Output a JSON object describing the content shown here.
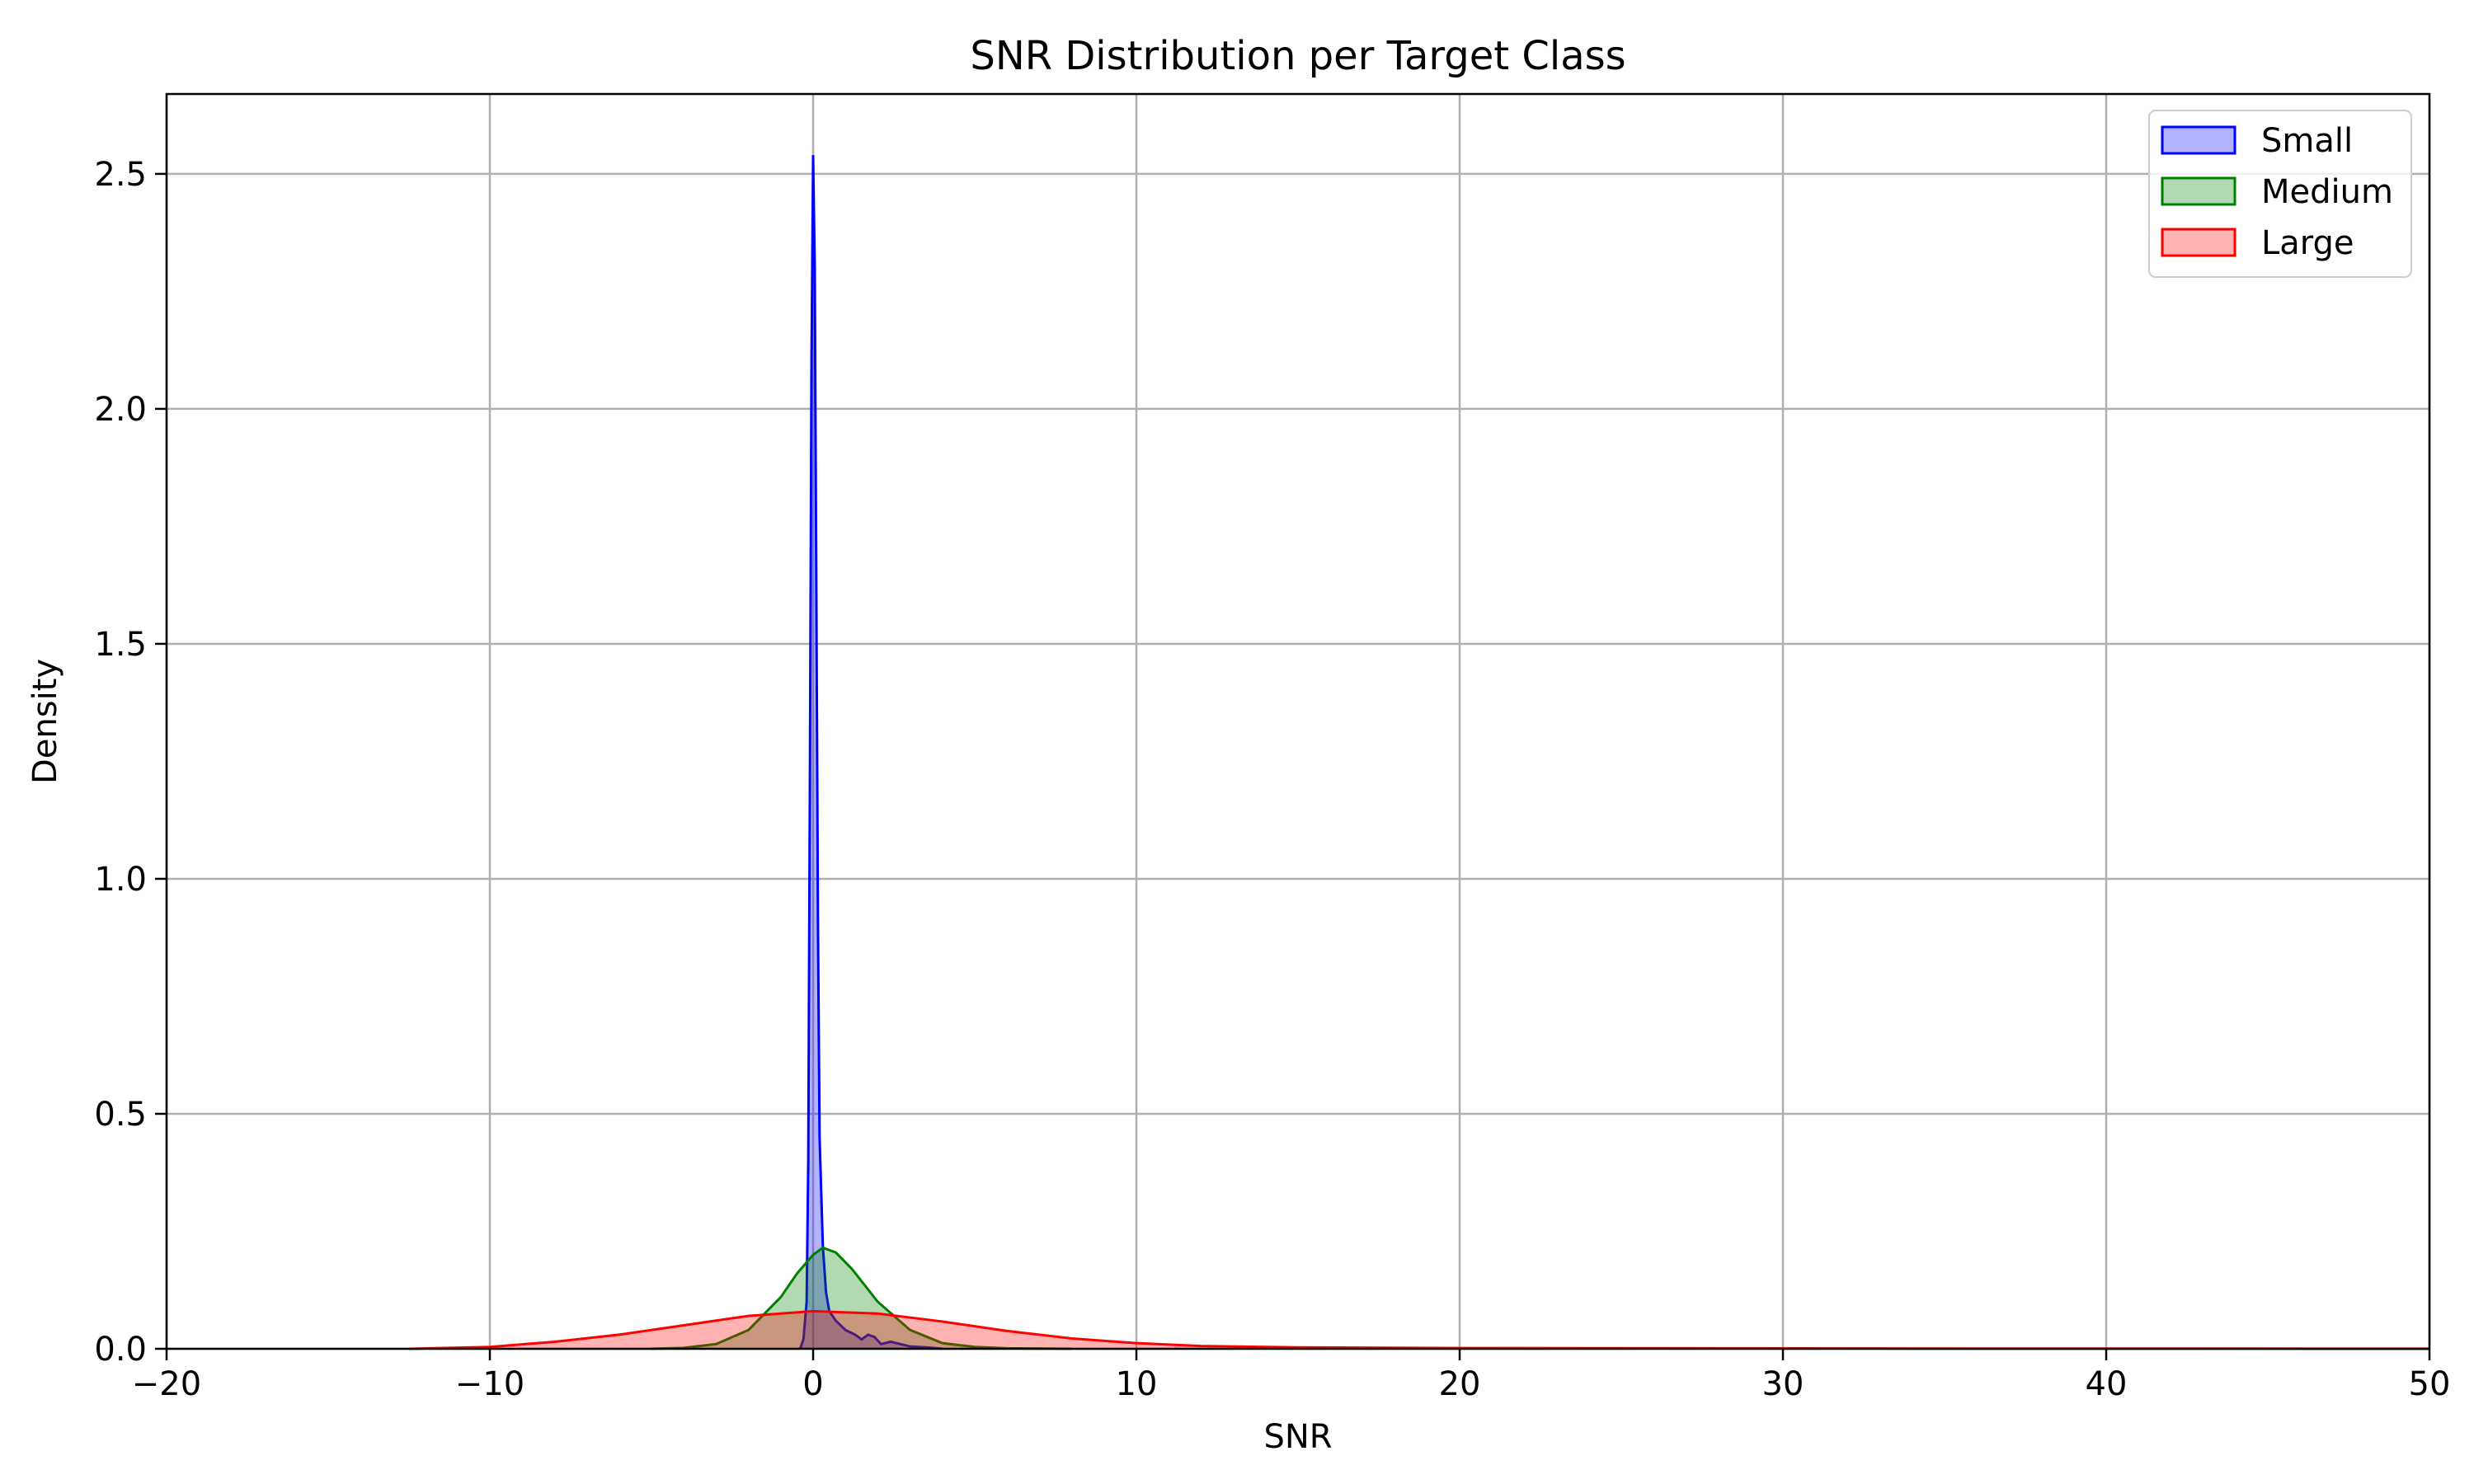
{
  "chart_data": {
    "type": "area",
    "title": "SNR Distribution per Target Class",
    "xlabel": "SNR",
    "ylabel": "Density",
    "xlim": [
      -20,
      50
    ],
    "ylim": [
      0,
      2.67
    ],
    "xticks": [
      -20,
      -10,
      0,
      10,
      20,
      30,
      40,
      50
    ],
    "xtick_labels": [
      "−20",
      "−10",
      "0",
      "10",
      "20",
      "30",
      "40",
      "50"
    ],
    "yticks": [
      0,
      0.5,
      1.0,
      1.5,
      2.0,
      2.5
    ],
    "ytick_labels": [
      "0.0",
      "0.5",
      "1.0",
      "1.5",
      "2.0",
      "2.5"
    ],
    "grid": true,
    "legend_position": "top-right",
    "series": [
      {
        "name": "Small",
        "color": "#0000ff",
        "fill_opacity": 0.3,
        "points": [
          [
            -0.4,
            0
          ],
          [
            -0.3,
            0.02
          ],
          [
            -0.2,
            0.1
          ],
          [
            -0.15,
            0.4
          ],
          [
            -0.1,
            1.2
          ],
          [
            -0.05,
            2.1
          ],
          [
            0.0,
            2.54
          ],
          [
            0.05,
            2.3
          ],
          [
            0.1,
            1.6
          ],
          [
            0.15,
            0.9
          ],
          [
            0.2,
            0.45
          ],
          [
            0.3,
            0.22
          ],
          [
            0.4,
            0.12
          ],
          [
            0.5,
            0.08
          ],
          [
            0.7,
            0.06
          ],
          [
            1.0,
            0.04
          ],
          [
            1.3,
            0.03
          ],
          [
            1.5,
            0.02
          ],
          [
            1.7,
            0.03
          ],
          [
            1.9,
            0.025
          ],
          [
            2.1,
            0.01
          ],
          [
            2.4,
            0.015
          ],
          [
            2.7,
            0.01
          ],
          [
            3.0,
            0.005
          ],
          [
            3.5,
            0.003
          ],
          [
            4.0,
            0
          ]
        ]
      },
      {
        "name": "Medium",
        "color": "#008000",
        "fill_opacity": 0.3,
        "points": [
          [
            -5,
            0
          ],
          [
            -4,
            0.002
          ],
          [
            -3,
            0.01
          ],
          [
            -2,
            0.04
          ],
          [
            -1,
            0.11
          ],
          [
            -0.5,
            0.16
          ],
          [
            0,
            0.2
          ],
          [
            0.3,
            0.215
          ],
          [
            0.7,
            0.205
          ],
          [
            1.2,
            0.17
          ],
          [
            2,
            0.1
          ],
          [
            3,
            0.04
          ],
          [
            4,
            0.012
          ],
          [
            5,
            0.004
          ],
          [
            6,
            0.001
          ],
          [
            8,
            0
          ]
        ]
      },
      {
        "name": "Large",
        "color": "#ff0000",
        "fill_opacity": 0.3,
        "points": [
          [
            -12.5,
            0
          ],
          [
            -10,
            0.004
          ],
          [
            -8,
            0.015
          ],
          [
            -6,
            0.03
          ],
          [
            -4,
            0.05
          ],
          [
            -2,
            0.07
          ],
          [
            0,
            0.08
          ],
          [
            2,
            0.075
          ],
          [
            4,
            0.058
          ],
          [
            6,
            0.038
          ],
          [
            8,
            0.022
          ],
          [
            10,
            0.012
          ],
          [
            12,
            0.006
          ],
          [
            15,
            0.003
          ],
          [
            20,
            0.0015
          ],
          [
            30,
            0.0008
          ],
          [
            40,
            0.0004
          ],
          [
            50,
            0.0002
          ]
        ]
      }
    ]
  }
}
